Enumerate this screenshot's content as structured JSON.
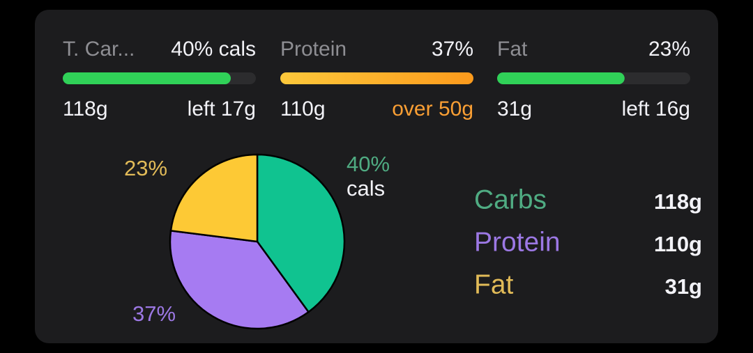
{
  "goals": [
    {
      "name": "T. Car...",
      "percent": "40% cals",
      "amount": "118g",
      "status": "left 17g",
      "progress": 0.87
    },
    {
      "name": "Protein",
      "percent": "37%",
      "amount": "110g",
      "status": "over 50g",
      "progress": 1
    },
    {
      "name": "Fat",
      "percent": "23%",
      "amount": "31g",
      "status": "left 16g",
      "progress": 0.66
    }
  ],
  "chart_data": {
    "type": "pie",
    "categories": [
      "Carbs",
      "Protein",
      "Fat"
    ],
    "values": [
      40,
      37,
      23
    ],
    "value_labels": [
      "40%",
      "37%",
      "23%"
    ],
    "unit_label": "cals",
    "colors": [
      "#10c390",
      "#a67bf2",
      "#fdc935"
    ],
    "label_colors": [
      "#4fab82",
      "#9c78e4",
      "#e2bb58"
    ],
    "grams": [
      "118g",
      "110g",
      "31g"
    ]
  }
}
